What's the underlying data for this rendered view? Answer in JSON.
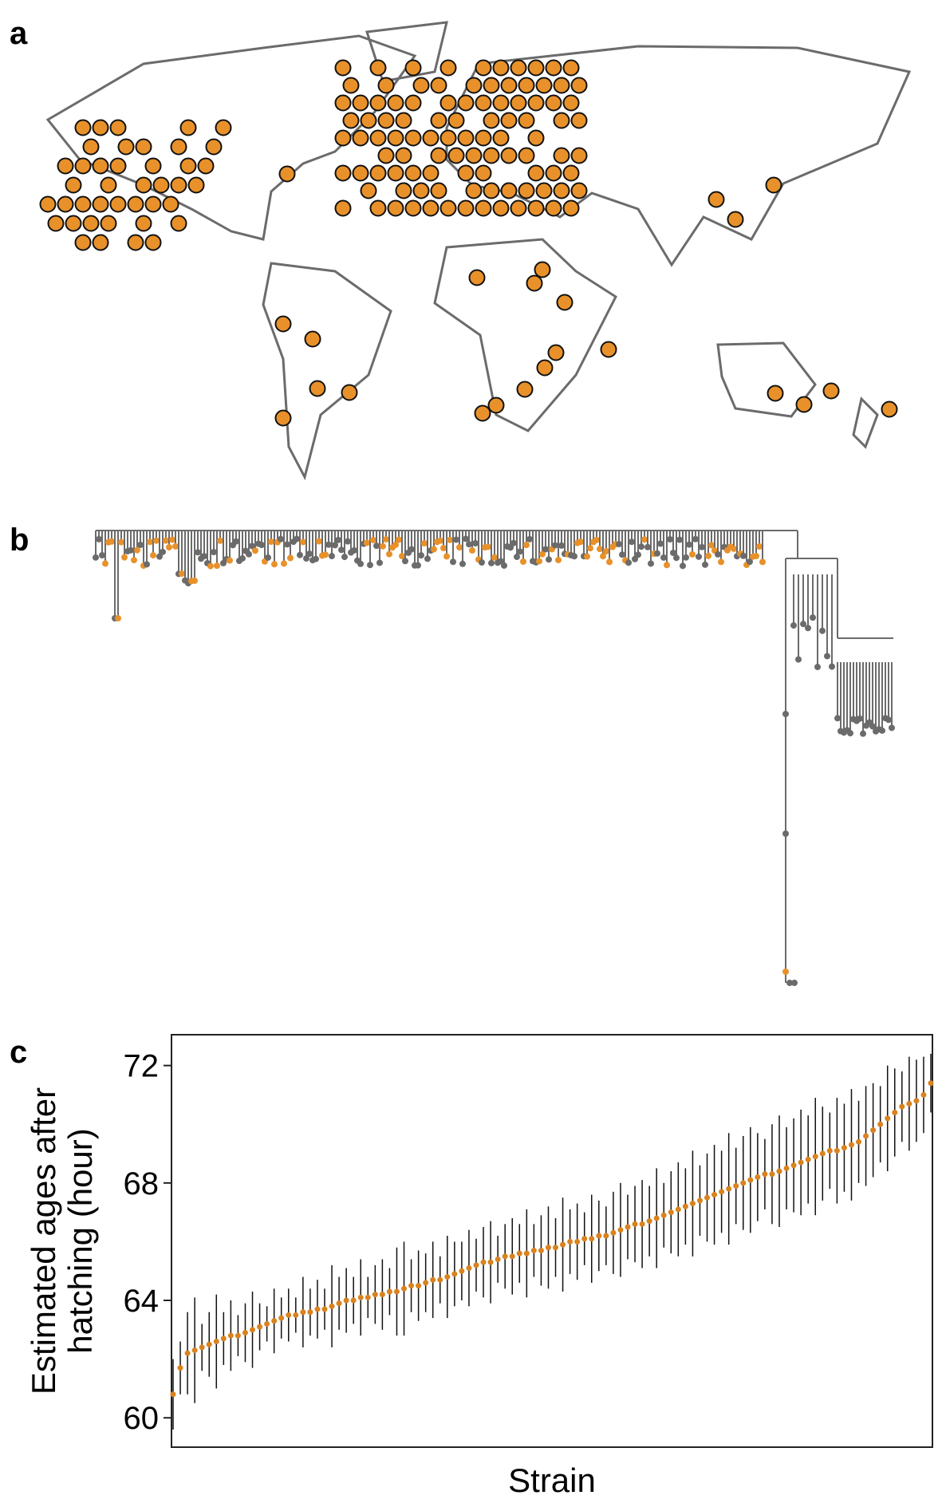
{
  "panel_labels": [
    "a",
    "b",
    "c"
  ],
  "chart_data": {
    "type": "errorbar",
    "ylabel": [
      "Estimated ages after",
      "hatching (hour)"
    ],
    "xlabel": "Strain",
    "ylim": [
      59.0,
      73.05
    ],
    "yticks": [
      60,
      64,
      68,
      72
    ],
    "color": "#d9821e",
    "values": [
      60.8,
      61.7,
      62.2,
      62.3,
      62.4,
      62.5,
      62.6,
      62.7,
      62.8,
      62.8,
      62.9,
      63.0,
      63.1,
      63.2,
      63.3,
      63.4,
      63.5,
      63.5,
      63.6,
      63.6,
      63.7,
      63.7,
      63.8,
      63.9,
      64.0,
      64.0,
      64.1,
      64.1,
      64.2,
      64.2,
      64.3,
      64.3,
      64.4,
      64.5,
      64.5,
      64.6,
      64.7,
      64.7,
      64.8,
      64.9,
      65.0,
      65.1,
      65.2,
      65.3,
      65.3,
      65.4,
      65.5,
      65.5,
      65.6,
      65.6,
      65.7,
      65.7,
      65.8,
      65.8,
      65.9,
      66.0,
      66.0,
      66.1,
      66.1,
      66.2,
      66.2,
      66.3,
      66.4,
      66.5,
      66.6,
      66.6,
      66.7,
      66.8,
      66.9,
      67.0,
      67.1,
      67.2,
      67.3,
      67.4,
      67.5,
      67.6,
      67.7,
      67.8,
      67.9,
      68.0,
      68.1,
      68.2,
      68.3,
      68.3,
      68.4,
      68.5,
      68.6,
      68.7,
      68.8,
      68.9,
      69.0,
      69.1,
      69.1,
      69.2,
      69.3,
      69.4,
      69.6,
      69.8,
      70.0,
      70.2,
      70.4,
      70.6,
      70.7,
      70.8,
      71.0,
      71.4
    ],
    "errors": [
      1.2,
      0.9,
      1.4,
      1.8,
      0.8,
      1.1,
      1.6,
      0.9,
      1.2,
      0.7,
      1.0,
      1.3,
      0.8,
      0.6,
      1.1,
      0.7,
      0.9,
      0.6,
      1.2,
      0.8,
      1.0,
      0.7,
      1.4,
      0.9,
      1.1,
      0.8,
      1.3,
      0.7,
      1.0,
      1.2,
      0.8,
      1.5,
      1.6,
      0.9,
      1.2,
      1.0,
      1.3,
      0.8,
      1.4,
      1.1,
      1.0,
      1.3,
      0.9,
      1.2,
      1.4,
      0.8,
      1.1,
      1.3,
      1.0,
      1.5,
      0.9,
      1.2,
      1.4,
      1.0,
      1.6,
      1.1,
      1.3,
      0.9,
      1.5,
      1.2,
      1.0,
      1.4,
      1.6,
      1.1,
      1.3,
      1.5,
      1.2,
      1.7,
      1.1,
      1.4,
      1.6,
      1.3,
      1.8,
      1.2,
      1.5,
      1.7,
      1.4,
      1.9,
      1.3,
      1.6,
      1.8,
      1.5,
      1.2,
      1.7,
      1.9,
      1.4,
      1.6,
      1.8,
      1.5,
      2.0,
      1.6,
      1.3,
      1.8,
      1.5,
      1.9,
      1.4,
      1.7,
      1.6,
      1.3,
      1.8,
      1.5,
      1.2,
      1.6,
      1.4,
      1.3,
      1.0
    ]
  }
}
